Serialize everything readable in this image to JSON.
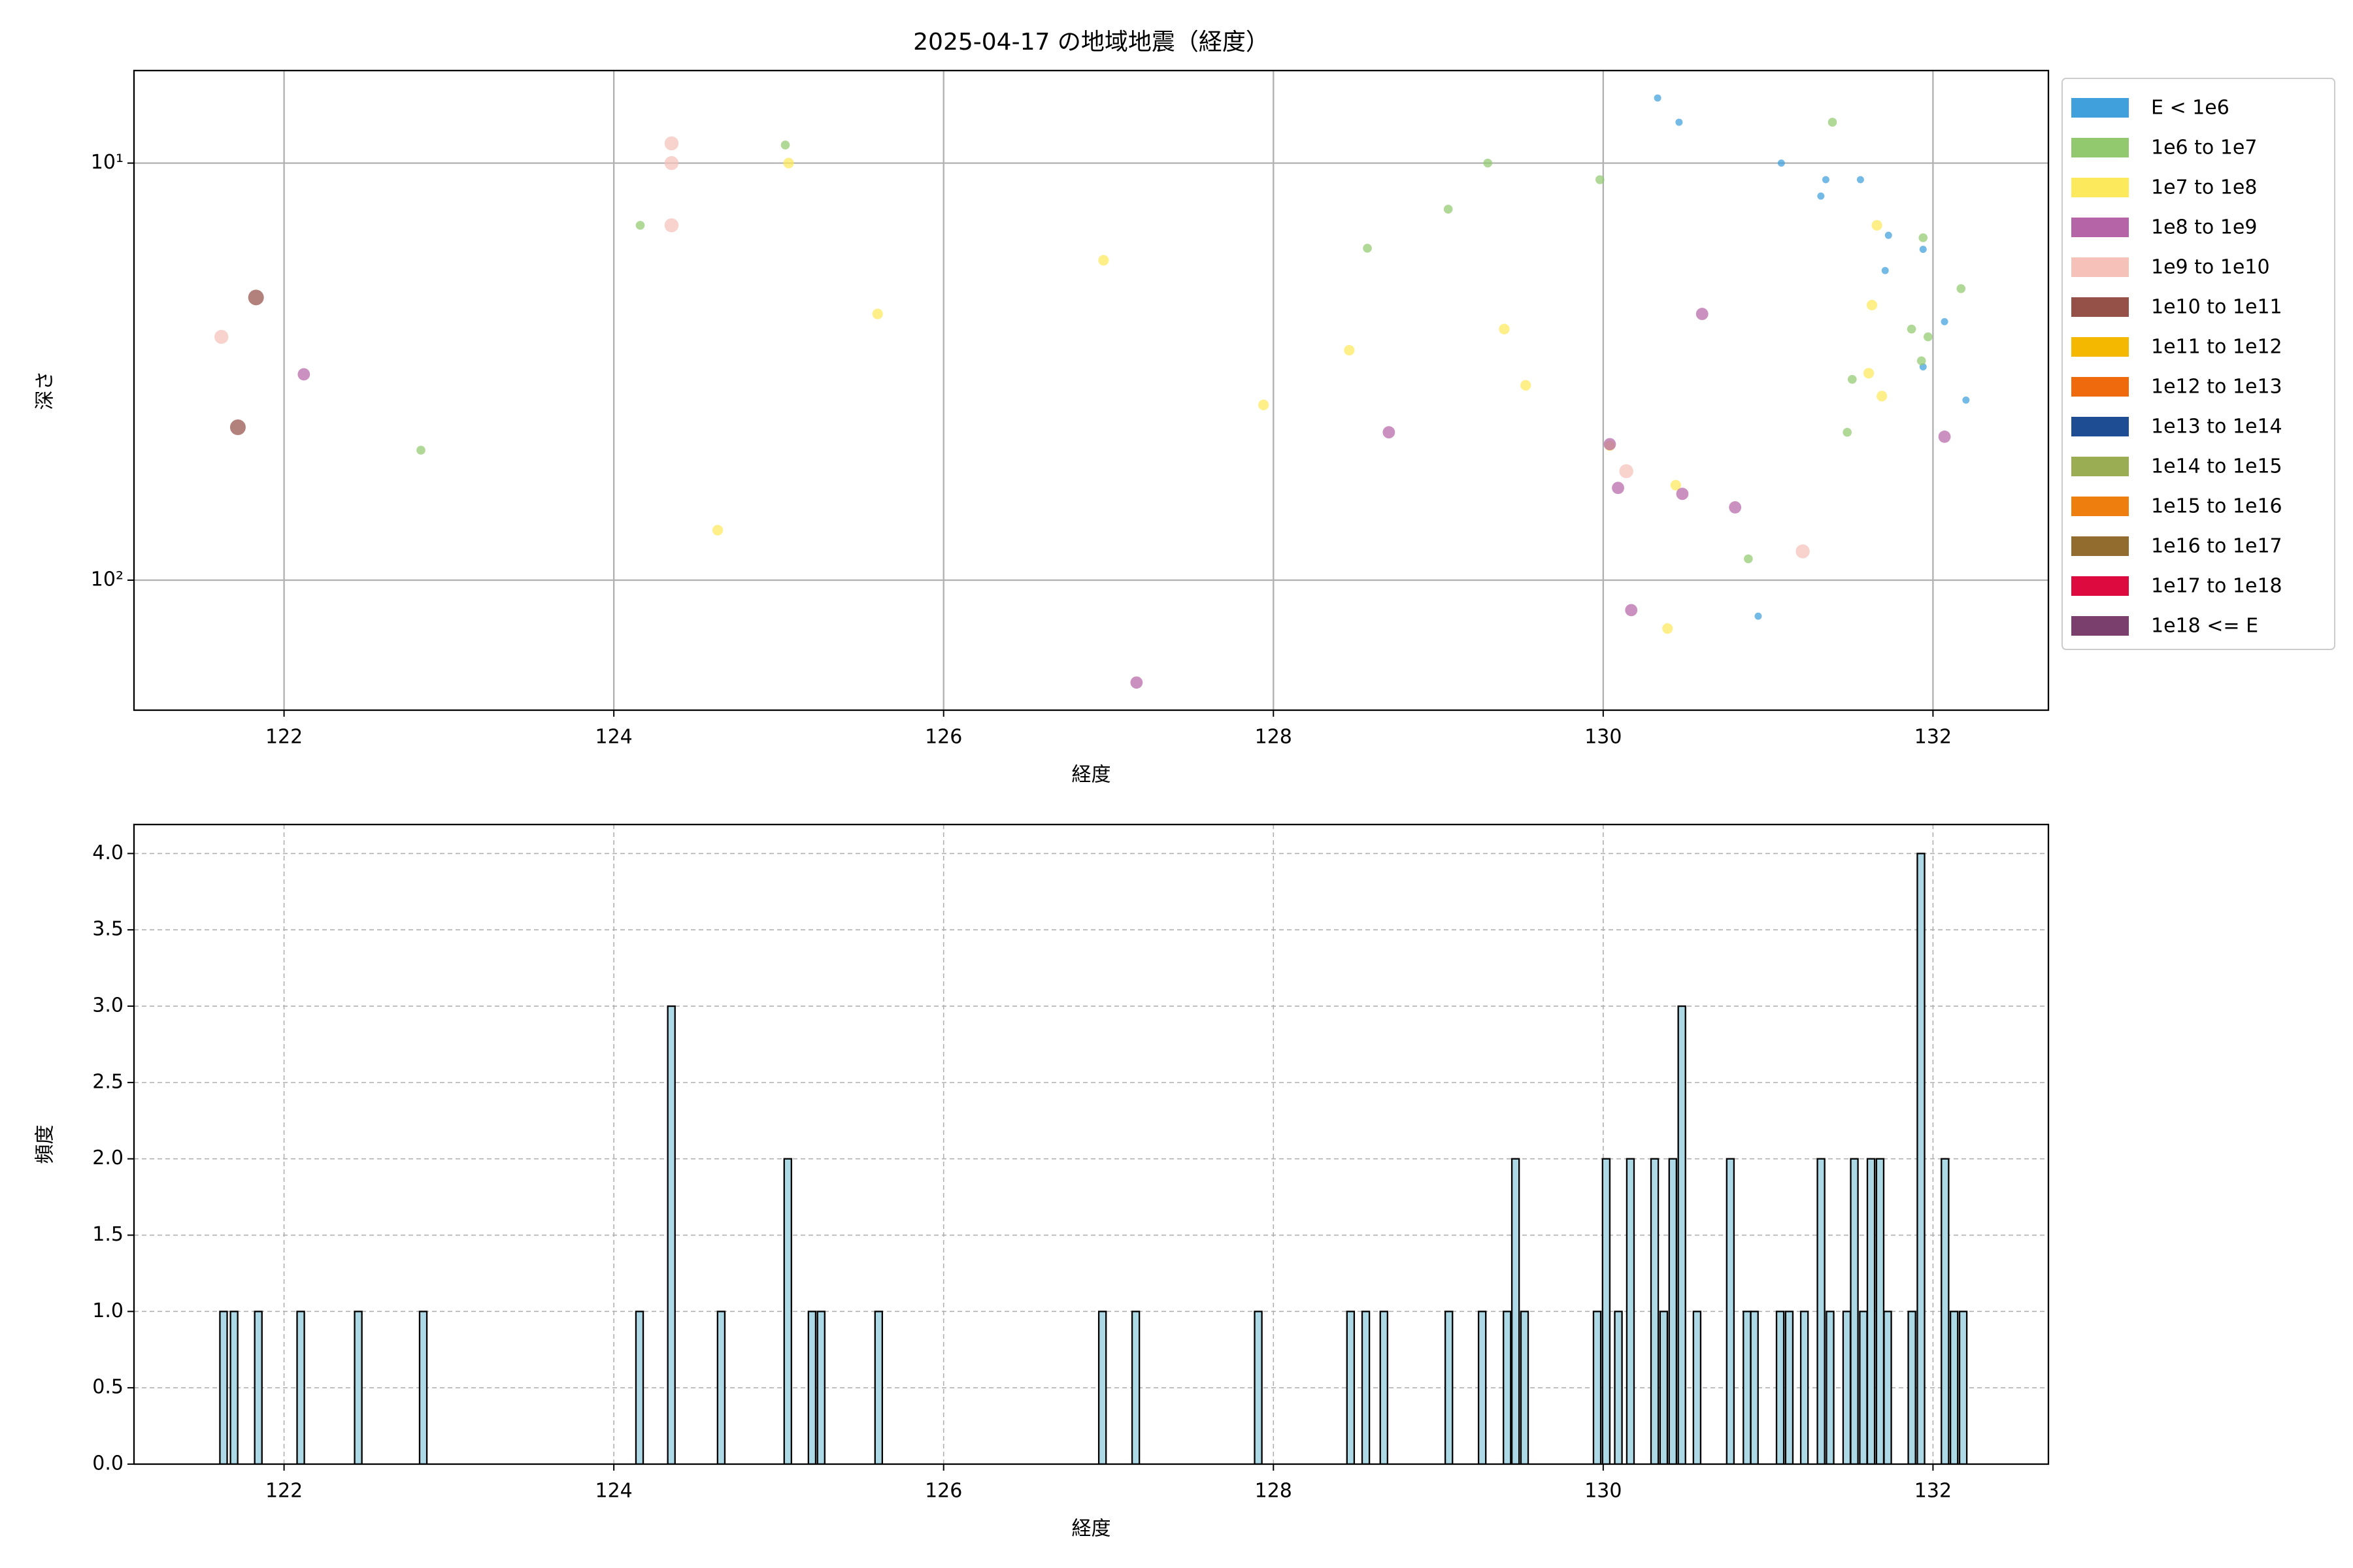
{
  "chart_data": [
    {
      "type": "scatter",
      "title": "2025-04-17 の地域地震（経度）",
      "xlabel": "経度",
      "ylabel": "深さ",
      "xlim": [
        121.09,
        132.7
      ],
      "xticks": [
        122,
        124,
        126,
        128,
        130,
        132
      ],
      "ylim": [
        6,
        205
      ],
      "yscale": "log",
      "y_inverted": true,
      "yticks": [
        {
          "value": 10,
          "label": "10¹"
        },
        {
          "value": 100,
          "label": "10²"
        }
      ],
      "grid": "solid",
      "legend": "outside right",
      "series": [
        {
          "name": "E < 1e6",
          "color": "#3fa0dc",
          "x": [
            130.33,
            130.46,
            131.08,
            131.35,
            131.56,
            131.32,
            131.73,
            131.71,
            131.94,
            132.07,
            131.94,
            132.2,
            130.94
          ],
          "values": [
            6.98,
            7.98,
            10,
            10.96,
            10.96,
            12.0,
            14.9,
            18.1,
            16.1,
            24.0,
            30.8,
            37.0,
            122
          ]
        },
        {
          "name": "1e6 to 1e7",
          "color": "#92c96f",
          "x": [
            125.04,
            124.16,
            122.83,
            128.57,
            129.06,
            129.3,
            129.98,
            131.39,
            131.94,
            132.17,
            131.87,
            131.97,
            131.93,
            131.51,
            131.48,
            130.88
          ],
          "values": [
            9.05,
            14.1,
            48.8,
            16.0,
            12.9,
            10,
            10.96,
            7.98,
            15.1,
            20.0,
            25.0,
            26.1,
            29.8,
            33.0,
            44.2,
            88.9
          ]
        },
        {
          "name": "1e7 to 1e8",
          "color": "#fde95c",
          "x": [
            125.06,
            125.6,
            126.97,
            127.94,
            128.46,
            129.4,
            129.53,
            124.63,
            130.44,
            130.39,
            131.66,
            131.63,
            131.61,
            131.69,
            130.04
          ],
          "values": [
            10,
            23.0,
            17.1,
            38.0,
            28.1,
            25.0,
            34.1,
            75.9,
            59.2,
            130.6,
            14.1,
            21.9,
            31.9,
            36.2,
            47.6
          ]
        },
        {
          "name": "1e8 to 1e9",
          "color": "#b565a7",
          "x": [
            122.12,
            128.7,
            130.6,
            130.04,
            130.09,
            130.48,
            130.8,
            132.07,
            130.17,
            127.17
          ],
          "values": [
            32.1,
            44.2,
            23.0,
            47.2,
            60.1,
            62.1,
            66.9,
            45.3,
            118,
            176
          ]
        },
        {
          "name": "1e9 to 1e10",
          "color": "#f5c1b8",
          "x": [
            121.62,
            124.35,
            124.35,
            124.35,
            130.14,
            131.21
          ],
          "values": [
            26.1,
            8.97,
            10,
            14.1,
            54.8,
            85.3
          ]
        },
        {
          "name": "1e10 to 1e11",
          "color": "#955048",
          "x": [
            121.83,
            121.72
          ],
          "values": [
            21.0,
            43.0
          ]
        },
        {
          "name": "1e11 to 1e12",
          "color": "#f5b800",
          "x": [],
          "values": []
        },
        {
          "name": "1e12 to 1e13",
          "color": "#ee6a0c",
          "x": [],
          "values": []
        },
        {
          "name": "1e13 to 1e14",
          "color": "#1f4d94",
          "x": [],
          "values": []
        },
        {
          "name": "1e14 to 1e15",
          "color": "#9aad53",
          "x": [],
          "values": []
        },
        {
          "name": "1e15 to 1e16",
          "color": "#ee7f0e",
          "x": [],
          "values": []
        },
        {
          "name": "1e16 to 1e17",
          "color": "#926b2e",
          "x": [],
          "values": []
        },
        {
          "name": "1e17 to 1e18",
          "color": "#dc0a3f",
          "x": [],
          "values": []
        },
        {
          "name": "1e18 <= E",
          "color": "#7b3f6e",
          "x": [],
          "values": []
        }
      ]
    },
    {
      "type": "histogram",
      "xlabel": "経度",
      "ylabel": "頻度",
      "color": "#add8e6",
      "edgecolor": "#000000",
      "xlim": [
        121.09,
        132.7
      ],
      "xticks": [
        122,
        124,
        126,
        128,
        130,
        132
      ],
      "ylim": [
        0,
        4.19
      ],
      "yticks": [
        {
          "value": 0,
          "label": "0.0"
        },
        {
          "value": 0.5,
          "label": "0.5"
        },
        {
          "value": 1,
          "label": "1.0"
        },
        {
          "value": 1.5,
          "label": "1.5"
        },
        {
          "value": 2,
          "label": "2.0"
        },
        {
          "value": 2.5,
          "label": "2.5"
        },
        {
          "value": 3,
          "label": "3.0"
        },
        {
          "value": 3.5,
          "label": "3.5"
        },
        {
          "value": 4,
          "label": "4.0"
        }
      ],
      "grid": "dashed",
      "bins": [
        121.611,
        121.655,
        121.675,
        121.719,
        121.822,
        121.866,
        122.079,
        122.123,
        122.428,
        122.472,
        122.822,
        122.866,
        124.134,
        124.178,
        124.327,
        124.371,
        124.629,
        124.673,
        125.033,
        125.077,
        125.18,
        125.224,
        125.235,
        125.279,
        125.584,
        125.628,
        126.941,
        126.985,
        127.143,
        127.187,
        127.886,
        127.93,
        128.446,
        128.49,
        128.538,
        128.582,
        128.648,
        128.692,
        129.042,
        129.086,
        129.244,
        129.288,
        129.395,
        129.439,
        129.446,
        129.49,
        129.501,
        129.545,
        129.941,
        129.985,
        129.996,
        130.04,
        130.07,
        130.114,
        130.143,
        130.187,
        130.29,
        130.334,
        130.345,
        130.389,
        130.4,
        130.444,
        130.455,
        130.499,
        130.547,
        130.591,
        130.749,
        130.793,
        130.85,
        130.894,
        130.895,
        130.939,
        131.051,
        131.095,
        131.106,
        131.15,
        131.198,
        131.242,
        131.299,
        131.343,
        131.354,
        131.398,
        131.455,
        131.499,
        131.501,
        131.545,
        131.556,
        131.6,
        131.602,
        131.646,
        131.657,
        131.701,
        131.703,
        131.747,
        131.85,
        131.894,
        131.905,
        131.949,
        132.051,
        132.095,
        132.106,
        132.15,
        132.161,
        132.205
      ],
      "values": [
        1,
        0,
        1,
        0,
        1,
        0,
        1,
        0,
        1,
        0,
        1,
        0,
        1,
        0,
        3,
        0,
        1,
        0,
        2,
        0,
        1,
        0,
        1,
        0,
        1,
        0,
        1,
        0,
        1,
        0,
        1,
        0,
        1,
        0,
        1,
        0,
        1,
        0,
        1,
        0,
        1,
        0,
        1,
        0,
        2,
        0,
        1,
        0,
        1,
        0,
        2,
        0,
        1,
        0,
        2,
        0,
        2,
        0,
        1,
        0,
        2,
        0,
        3,
        0,
        1,
        0,
        2,
        0,
        1,
        0,
        1,
        0,
        1,
        0,
        1,
        0,
        1,
        0,
        2,
        0,
        1,
        0,
        1,
        0,
        2,
        0,
        1,
        0,
        2,
        0,
        2,
        0,
        1,
        0,
        1,
        0,
        4,
        0,
        2,
        0,
        1,
        0,
        1
      ]
    }
  ]
}
